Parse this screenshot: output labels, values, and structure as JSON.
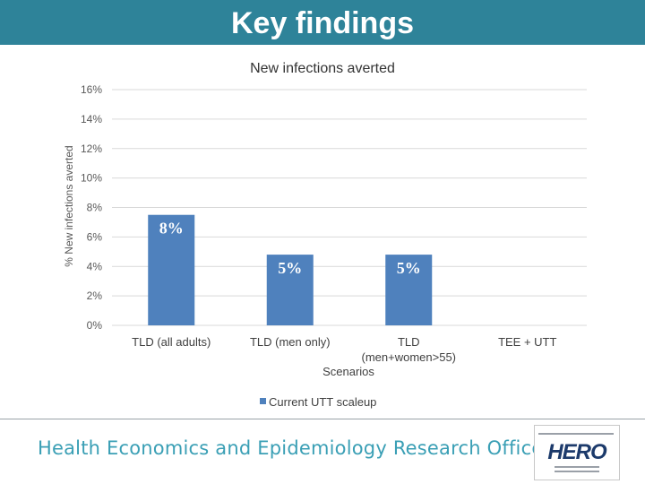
{
  "slide": {
    "title": "Key findings",
    "footer": "Health Economics and Epidemiology Research Office",
    "logo_text": "HERO"
  },
  "colors": {
    "header": "#2e8399",
    "bar": "#4f81bd",
    "footer_text": "#3a9fb5"
  },
  "chart_data": {
    "type": "bar",
    "title": "New infections averted",
    "xlabel": "Scenarios",
    "ylabel": "% New infections averted",
    "categories": [
      "TLD (all adults)",
      "TLD (men only)",
      "TLD (men+women>55)",
      "TEE + UTT"
    ],
    "category_lines": [
      [
        "TLD (all adults)"
      ],
      [
        "TLD (men only)"
      ],
      [
        "TLD",
        "(men+women>55)"
      ],
      [
        "TEE + UTT"
      ]
    ],
    "series": [
      {
        "name": "Current UTT scaleup",
        "values": [
          7.5,
          4.8,
          4.8,
          null
        ],
        "labels": [
          "8%",
          "5%",
          "5%",
          ""
        ]
      }
    ],
    "ylim": [
      0,
      16
    ],
    "yticks": [
      0,
      2,
      4,
      6,
      8,
      10,
      12,
      14,
      16
    ],
    "ytick_labels": [
      "0%",
      "2%",
      "4%",
      "6%",
      "8%",
      "10%",
      "12%",
      "14%",
      "16%"
    ],
    "grid": true,
    "legend_position": "bottom"
  }
}
